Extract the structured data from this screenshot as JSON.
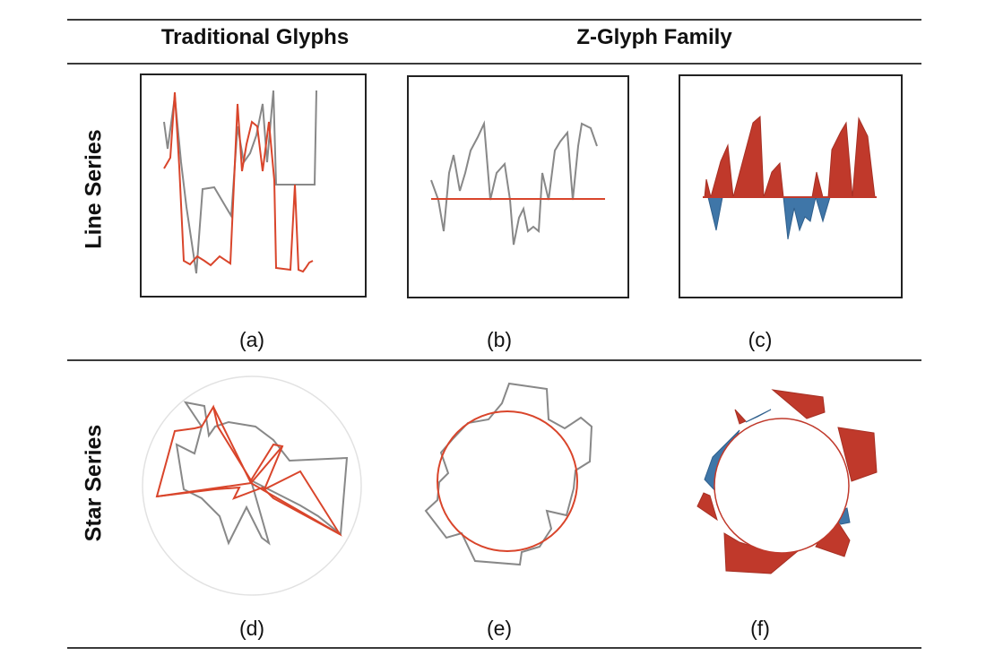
{
  "header": {
    "traditional": "Traditional Glyphs",
    "zglyph": "Z-Glyph Family"
  },
  "rows": {
    "line": "Line Series",
    "star": "Star Series"
  },
  "captions": [
    "(a)",
    "(b)",
    "(c)",
    "(d)",
    "(e)",
    "(f)"
  ],
  "colors": {
    "series": "#888888",
    "reference": "#d9452b",
    "positive": "#c0392b",
    "negative": "#3f76a8",
    "rule": "#3a3a3a",
    "circle": "#e2e2e2"
  }
}
